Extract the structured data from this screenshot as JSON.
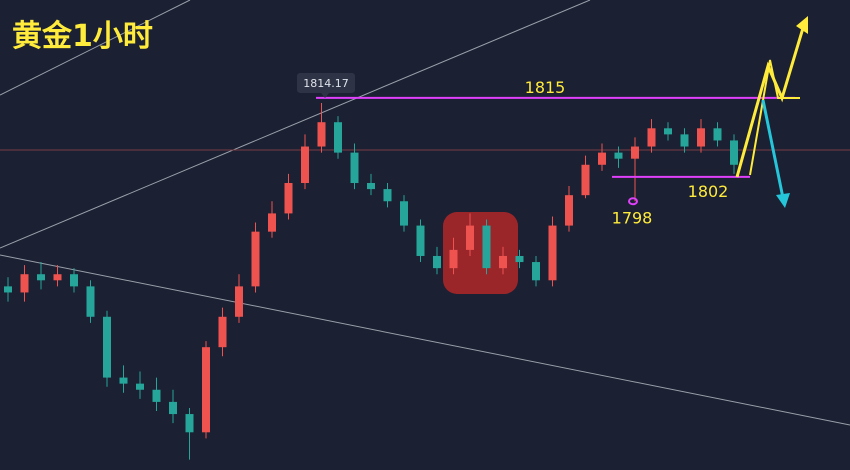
{
  "chart_data": {
    "type": "candlestick",
    "title": "黄金1小时",
    "ylim": [
      1753.8,
      1831.1
    ],
    "open": [
      1784,
      1783,
      1786,
      1785,
      1786,
      1784,
      1779,
      1769,
      1768,
      1767,
      1765,
      1763,
      1760,
      1774,
      1779,
      1784,
      1793,
      1796,
      1801,
      1807,
      1811,
      1806,
      1801,
      1800,
      1798,
      1794,
      1789,
      1787,
      1790,
      1794,
      1787,
      1789,
      1788,
      1785,
      1794,
      1799,
      1804,
      1806,
      1805,
      1807,
      1810,
      1809,
      1807,
      1810,
      1808
    ],
    "high": [
      1785.5,
      1787.5,
      1788,
      1787.5,
      1787,
      1785,
      1780,
      1771,
      1770,
      1769,
      1767,
      1764,
      1775,
      1780.5,
      1786,
      1794.5,
      1798,
      1802.5,
      1809,
      1814.17,
      1812,
      1807.5,
      1802.5,
      1801,
      1799,
      1795,
      1790.5,
      1792,
      1796,
      1795,
      1790.5,
      1790,
      1789,
      1795.5,
      1800.5,
      1805.5,
      1807.5,
      1807,
      1808.5,
      1811.5,
      1811,
      1810,
      1811.5,
      1811,
      1809
    ],
    "low": [
      1781.5,
      1781.5,
      1783.5,
      1784,
      1783,
      1778,
      1767.5,
      1766.5,
      1765.5,
      1763.5,
      1761.5,
      1755.5,
      1759,
      1772.5,
      1778,
      1783,
      1792,
      1795,
      1800,
      1806,
      1805,
      1800,
      1799,
      1797,
      1793,
      1788,
      1786,
      1786,
      1789,
      1786,
      1786,
      1787,
      1784,
      1784,
      1793,
      1798.5,
      1803,
      1803.5,
      1798,
      1806,
      1808,
      1806,
      1806,
      1807,
      1802.5
    ],
    "close": [
      1783,
      1786,
      1785,
      1786,
      1784,
      1779,
      1769,
      1768,
      1767,
      1765,
      1763,
      1760,
      1774,
      1779,
      1784,
      1793,
      1796,
      1801,
      1807,
      1811,
      1806,
      1801,
      1800,
      1798,
      1794,
      1789,
      1787,
      1790,
      1794,
      1787,
      1789,
      1788,
      1785,
      1794,
      1799,
      1804,
      1806,
      1805,
      1807,
      1810,
      1809,
      1807,
      1810,
      1808,
      1804
    ],
    "up_color": "#ef5350",
    "down_color": "#26a69a",
    "high_label": 1814.17,
    "resistance": 1815,
    "support": 1802,
    "low_marker": 1798,
    "level_color": "#e040fb"
  }
}
